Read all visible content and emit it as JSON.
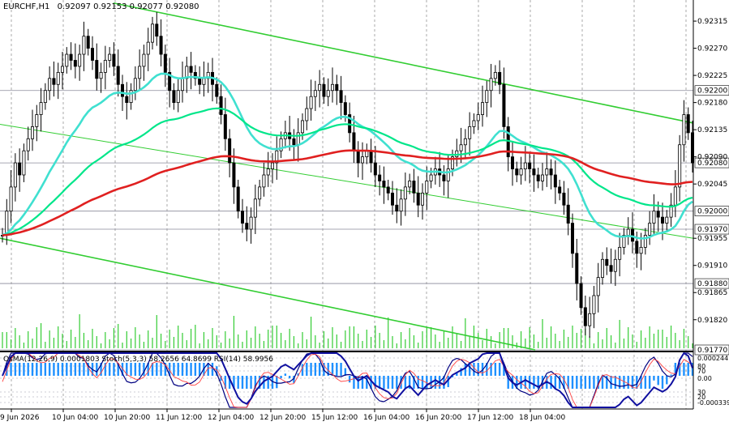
{
  "header": {
    "symbol": "EURCHF,H1",
    "ohlc": "0.92097 0.92153 0.92077 0.92080"
  },
  "indicators_label": "OsMA(12,26,9) 0.0001803  Stoch(5,3,3) 58.2656 64.8699  RSI(14) 58.9956",
  "colors": {
    "bullish_bear_candles": "#000000",
    "channel_lines": "#32cd32",
    "ema_fast": "#40e0d0",
    "ema_mid": "#00e68a",
    "ema_slow": "#e02020",
    "volume": "#33cc33",
    "osma": "#1e90ff",
    "stoch_main": "#000080",
    "stoch_signal": "#ff4040"
  },
  "chart_data": {
    "type": "candlestick",
    "price_ticks": [
      "0.92315",
      "0.92270",
      "0.92225",
      "0.92180",
      "0.92135",
      "0.92090",
      "0.92045",
      "0.91955",
      "0.91910",
      "0.91865",
      "0.91820"
    ],
    "price_ylim": [
      0.9177,
      0.9235
    ],
    "highlighted_levels": [
      {
        "label": "0.92200",
        "value": 0.922
      },
      {
        "label": "0.92080",
        "value": 0.9208
      },
      {
        "label": "0.92000",
        "value": 0.92
      },
      {
        "label": "0.91970",
        "value": 0.9197
      },
      {
        "label": "0.91880",
        "value": 0.9188
      },
      {
        "label": "0.91770",
        "value": 0.9177
      }
    ],
    "time_labels": [
      "9 Jun 2026",
      "10 Jun 04:00",
      "10 Jun 20:00",
      "11 Jun 12:00",
      "12 Jun 04:00",
      "12 Jun 20:00",
      "15 Jun 12:00",
      "16 Jun 04:00",
      "16 Jun 20:00",
      "17 Jun 12:00",
      "18 Jun 04:00"
    ],
    "close_series": [
      0.9196,
      0.92,
      0.9204,
      0.9208,
      0.9206,
      0.921,
      0.9212,
      0.9214,
      0.9216,
      0.9218,
      0.922,
      0.9222,
      0.9221,
      0.9223,
      0.9224,
      0.9226,
      0.9225,
      0.9224,
      0.9226,
      0.9229,
      0.9227,
      0.9225,
      0.9222,
      0.9223,
      0.9225,
      0.9226,
      0.9224,
      0.9221,
      0.9219,
      0.9218,
      0.922,
      0.9222,
      0.9224,
      0.9226,
      0.9228,
      0.9231,
      0.9229,
      0.9226,
      0.9223,
      0.922,
      0.9218,
      0.922,
      0.9222,
      0.9224,
      0.9223,
      0.9222,
      0.9221,
      0.9222,
      0.9223,
      0.9221,
      0.9219,
      0.9216,
      0.9212,
      0.9208,
      0.9204,
      0.92,
      0.9198,
      0.9197,
      0.9199,
      0.9202,
      0.9204,
      0.9206,
      0.9207,
      0.9208,
      0.921,
      0.9212,
      0.9213,
      0.9212,
      0.9211,
      0.9213,
      0.9215,
      0.9217,
      0.9219,
      0.922,
      0.9221,
      0.9219,
      0.922,
      0.9221,
      0.922,
      0.9218,
      0.9216,
      0.9213,
      0.921,
      0.9208,
      0.9209,
      0.921,
      0.9208,
      0.9206,
      0.9205,
      0.9204,
      0.9203,
      0.9201,
      0.92,
      0.9202,
      0.9204,
      0.9205,
      0.9203,
      0.9201,
      0.9203,
      0.9205,
      0.9206,
      0.9207,
      0.9206,
      0.9205,
      0.9207,
      0.9209,
      0.921,
      0.9211,
      0.9212,
      0.9214,
      0.9215,
      0.9216,
      0.9218,
      0.922,
      0.9222,
      0.9223,
      0.9221,
      0.9214,
      0.9209,
      0.9207,
      0.9206,
      0.9207,
      0.9208,
      0.9207,
      0.9206,
      0.9205,
      0.9206,
      0.9207,
      0.9206,
      0.9204,
      0.9203,
      0.9201,
      0.9198,
      0.9193,
      0.9188,
      0.9184,
      0.9181,
      0.9183,
      0.9186,
      0.9189,
      0.9192,
      0.9191,
      0.919,
      0.9192,
      0.9194,
      0.9196,
      0.9197,
      0.9195,
      0.9193,
      0.9194,
      0.9196,
      0.9198,
      0.92,
      0.9199,
      0.9198,
      0.9199,
      0.9201,
      0.9204,
      0.9211,
      0.9216,
      0.9213,
      0.9208
    ]
  }
}
